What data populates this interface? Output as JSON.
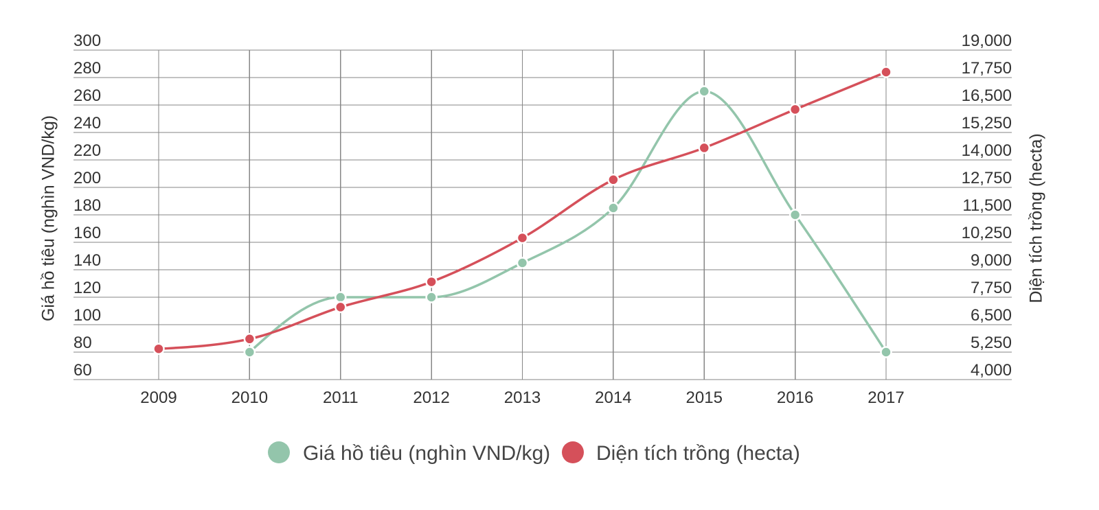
{
  "chart_data": {
    "type": "line",
    "x": [
      "2009",
      "2010",
      "2011",
      "2012",
      "2013",
      "2014",
      "2015",
      "2016",
      "2017"
    ],
    "y_left": {
      "label": "Giá hồ tiêu (nghìn VND/kg)",
      "range": [
        60,
        300
      ],
      "ticks": [
        "300",
        "280",
        "260",
        "240",
        "220",
        "200",
        "180",
        "160",
        "140",
        "120",
        "100",
        "80",
        "60"
      ]
    },
    "y_right": {
      "label": "Diện tích trồng (hecta)",
      "range": [
        4000,
        19000
      ],
      "ticks": [
        "19,000",
        "17,750",
        "16,500",
        "15,250",
        "14,000",
        "12,750",
        "11,500",
        "10,250",
        "9,000",
        "7,750",
        "6,500",
        "5,250",
        "4,000"
      ]
    },
    "series": [
      {
        "name": "Giá hồ tiêu (nghìn VND/kg)",
        "axis": "left",
        "color": "#93c5ab",
        "values": [
          null,
          80,
          120,
          120,
          145,
          185,
          270,
          180,
          80
        ]
      },
      {
        "name": "Diện tích trồng (hecta)",
        "axis": "right",
        "color": "#d5505a",
        "values": [
          5400,
          5850,
          7300,
          8450,
          10450,
          13100,
          14550,
          16300,
          18000
        ]
      }
    ],
    "grid": true,
    "legend": "bottom-center"
  }
}
